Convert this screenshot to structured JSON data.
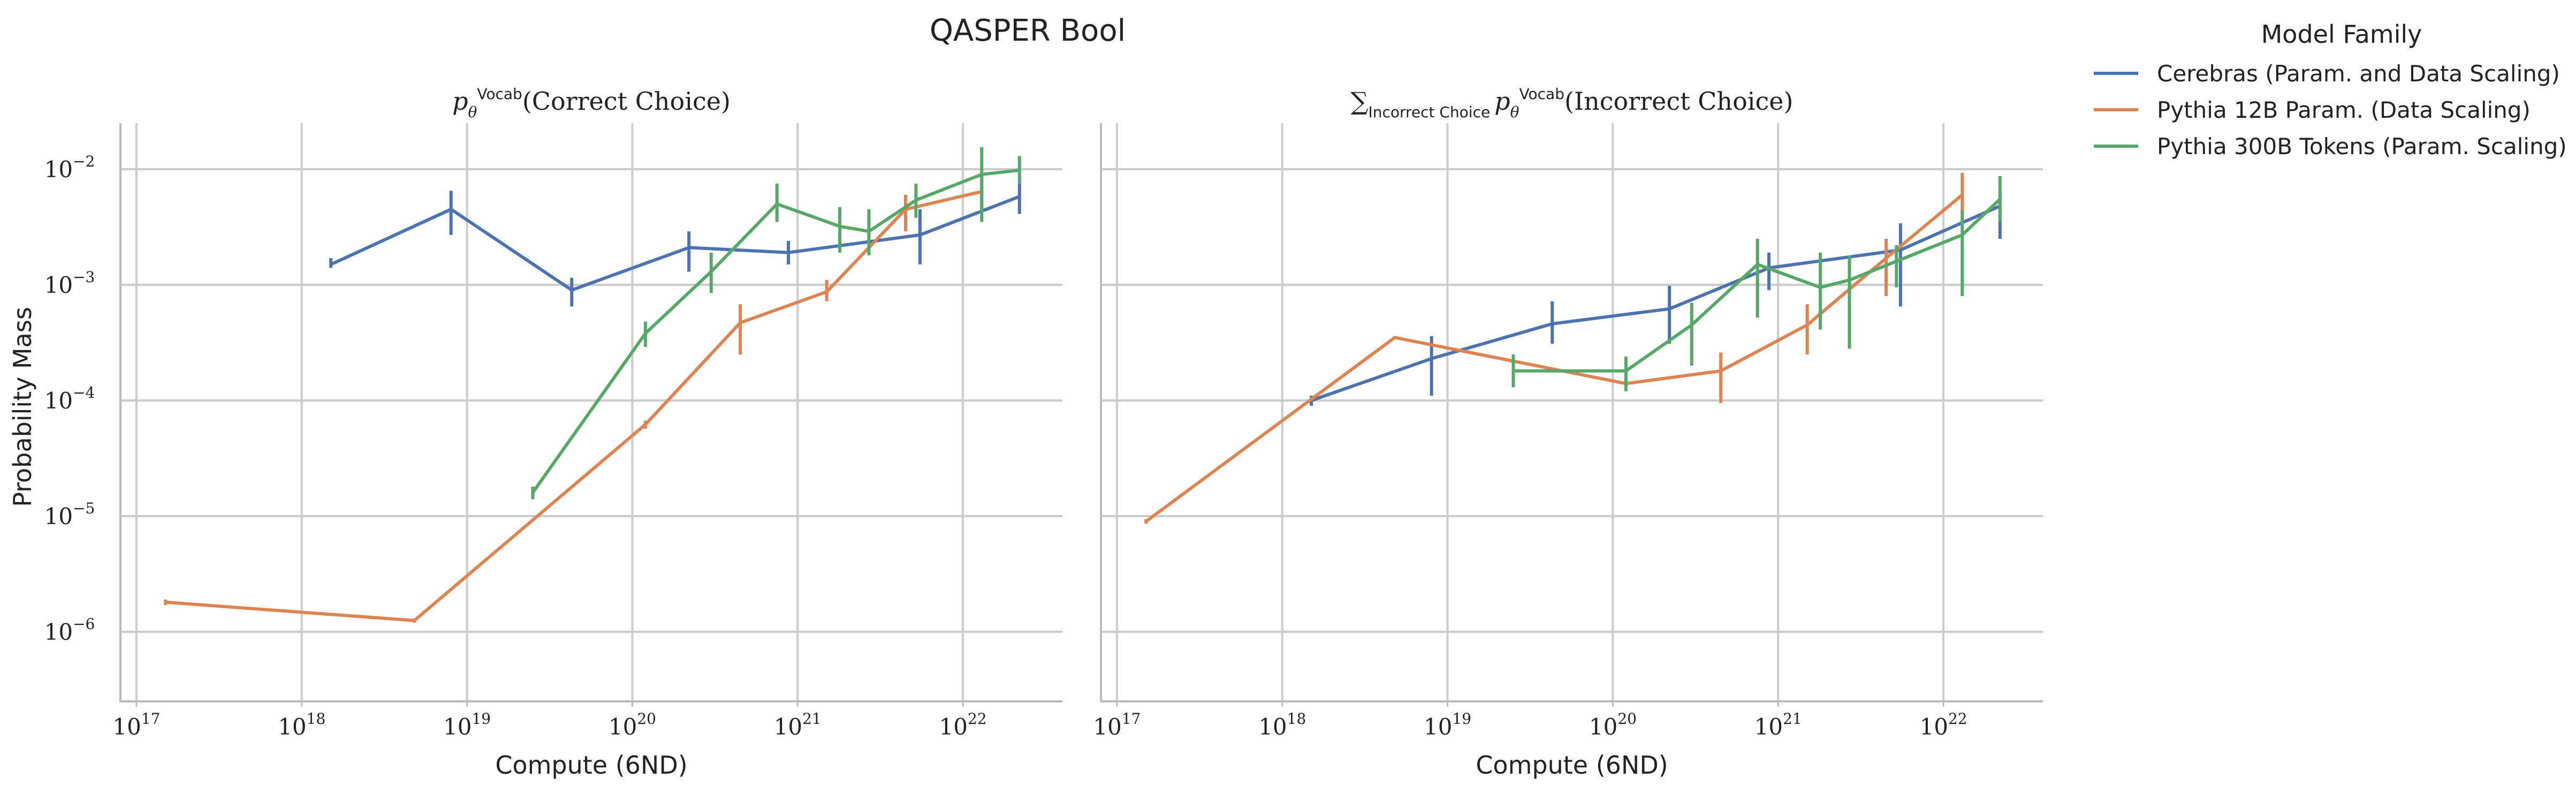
{
  "chart_data": {
    "type": "line",
    "title": "QASPER Bool",
    "legend": {
      "title": "Model Family",
      "placement": "right-outside-top",
      "entries": [
        {
          "label": "Cerebras (Param. and Data Scaling)",
          "color": "#4c72b0"
        },
        {
          "label": "Pythia 12B Param. (Data Scaling)",
          "color": "#dd8452"
        },
        {
          "label": "Pythia 300B Tokens (Param. Scaling)",
          "color": "#55a868"
        }
      ]
    },
    "x_scale": "log",
    "y_scale": "log",
    "xlim": [
      8e+16,
      4e+22
    ],
    "ylim": [
      2.5e-07,
      0.025
    ],
    "x_ticks": [
      {
        "value": 1e+17,
        "base": "10",
        "exp": "17"
      },
      {
        "value": 1e+18,
        "base": "10",
        "exp": "18"
      },
      {
        "value": 1e+19,
        "base": "10",
        "exp": "19"
      },
      {
        "value": 1e+20,
        "base": "10",
        "exp": "20"
      },
      {
        "value": 1e+21,
        "base": "10",
        "exp": "21"
      },
      {
        "value": 1e+22,
        "base": "10",
        "exp": "22"
      }
    ],
    "y_ticks": [
      {
        "value": 1e-06,
        "base": "10",
        "exp": "−6"
      },
      {
        "value": 1e-05,
        "base": "10",
        "exp": "−5"
      },
      {
        "value": 0.0001,
        "base": "10",
        "exp": "−4"
      },
      {
        "value": 0.001,
        "base": "10",
        "exp": "−3"
      },
      {
        "value": 0.01,
        "base": "10",
        "exp": "−2"
      }
    ],
    "grid": true,
    "ylabel": "Probability Mass",
    "panels": [
      {
        "title_math": "p",
        "title_sub": "θ",
        "title_sup": "Vocab",
        "title_rest": "(Correct Choice)",
        "xlabel": "Compute (6ND)",
        "series": [
          {
            "name": "Cerebras (Param. and Data Scaling)",
            "color": "#4c72b0",
            "x": [
              1.5e+18,
              8e+18,
              4.3e+19,
              2.2e+20,
              8.8e+20,
              5.5e+21,
              2.2e+22
            ],
            "y": [
              0.0015,
              0.0045,
              0.0009,
              0.0021,
              0.0019,
              0.0027,
              0.0058
            ],
            "err_low": [
              0.0014,
              0.0027,
              0.00065,
              0.0013,
              0.0015,
              0.0015,
              0.0041
            ],
            "err_high": [
              0.0017,
              0.0065,
              0.00115,
              0.0029,
              0.0024,
              0.0045,
              0.0076
            ]
          },
          {
            "name": "Pythia 12B Param. (Data Scaling)",
            "color": "#dd8452",
            "x": [
              1.5e+17,
              4.8e+18,
              1.2e+20,
              4.5e+20,
              1.5e+21,
              4.5e+21,
              1.3e+22
            ],
            "y": [
              1.8e-06,
              1.25e-06,
              6.2e-05,
              0.00047,
              0.00087,
              0.0045,
              0.0064
            ],
            "err_low": [
              1.7e-06,
              1.2e-06,
              5.7e-05,
              0.00025,
              0.00072,
              0.0029,
              0.0042
            ],
            "err_high": [
              1.9e-06,
              1.3e-06,
              6.7e-05,
              0.00068,
              0.0011,
              0.006,
              0.0093
            ]
          },
          {
            "name": "Pythia 300B Tokens (Param. Scaling)",
            "color": "#55a868",
            "x": [
              2.5e+19,
              1.2e+20,
              3e+20,
              7.5e+20,
              1.8e+21,
              2.7e+21,
              5.2e+21,
              1.3e+22,
              2.2e+22
            ],
            "y": [
              1.6e-05,
              0.00038,
              0.0013,
              0.005,
              0.0032,
              0.0029,
              0.0054,
              0.009,
              0.0098
            ],
            "err_low": [
              1.4e-05,
              0.00029,
              0.00085,
              0.0035,
              0.0019,
              0.0018,
              0.0038,
              0.0035,
              0.0074
            ],
            "err_high": [
              1.8e-05,
              0.00048,
              0.0019,
              0.0075,
              0.0047,
              0.0045,
              0.0075,
              0.0155,
              0.013
            ]
          }
        ]
      },
      {
        "title_math": "∑",
        "title_math_sub": "Incorrect Choice",
        "title_p": "p",
        "title_sub": "θ",
        "title_sup": "Vocab",
        "title_rest": "(Incorrect Choice)",
        "xlabel": "Compute (6ND)",
        "series": [
          {
            "name": "Cerebras (Param. and Data Scaling)",
            "color": "#4c72b0",
            "x": [
              1.5e+18,
              8e+18,
              4.3e+19,
              2.2e+20,
              8.8e+20,
              5.5e+21,
              2.2e+22
            ],
            "y": [
              0.0001,
              0.00023,
              0.00046,
              0.00062,
              0.0014,
              0.002,
              0.0048
            ],
            "err_low": [
              9e-05,
              0.00011,
              0.00031,
              0.00031,
              0.0009,
              0.00065,
              0.0025
            ],
            "err_high": [
              0.00011,
              0.00036,
              0.00072,
              0.00098,
              0.0019,
              0.0034,
              0.0068
            ]
          },
          {
            "name": "Pythia 12B Param. (Data Scaling)",
            "color": "#dd8452",
            "x": [
              1.5e+17,
              4.8e+18,
              1.2e+20,
              4.5e+20,
              1.5e+21,
              4.5e+21,
              1.3e+22
            ],
            "y": [
              9e-06,
              0.00035,
              0.00014,
              0.00018,
              0.00045,
              0.0017,
              0.006
            ],
            "err_low": [
              8.6e-06,
              0.00034,
              0.00013,
              9.5e-05,
              0.00025,
              0.0008,
              0.0042
            ],
            "err_high": [
              9.4e-06,
              0.00036,
              0.00015,
              0.00026,
              0.00068,
              0.0025,
              0.0093
            ]
          },
          {
            "name": "Pythia 300B Tokens (Param. Scaling)",
            "color": "#55a868",
            "x": [
              2.5e+19,
              1.2e+20,
              3e+20,
              7.5e+20,
              1.8e+21,
              2.7e+21,
              5.2e+21,
              1.3e+22,
              2.2e+22
            ],
            "y": [
              0.00018,
              0.00018,
              0.00045,
              0.0015,
              0.00095,
              0.0011,
              0.0016,
              0.0027,
              0.0055
            ],
            "err_low": [
              0.00013,
              0.00012,
              0.0002,
              0.00052,
              0.00041,
              0.00028,
              0.00095,
              0.0008,
              0.0035
            ],
            "err_high": [
              0.00025,
              0.00024,
              0.0007,
              0.0025,
              0.0019,
              0.0018,
              0.0022,
              0.0044,
              0.0087
            ]
          }
        ]
      }
    ]
  }
}
